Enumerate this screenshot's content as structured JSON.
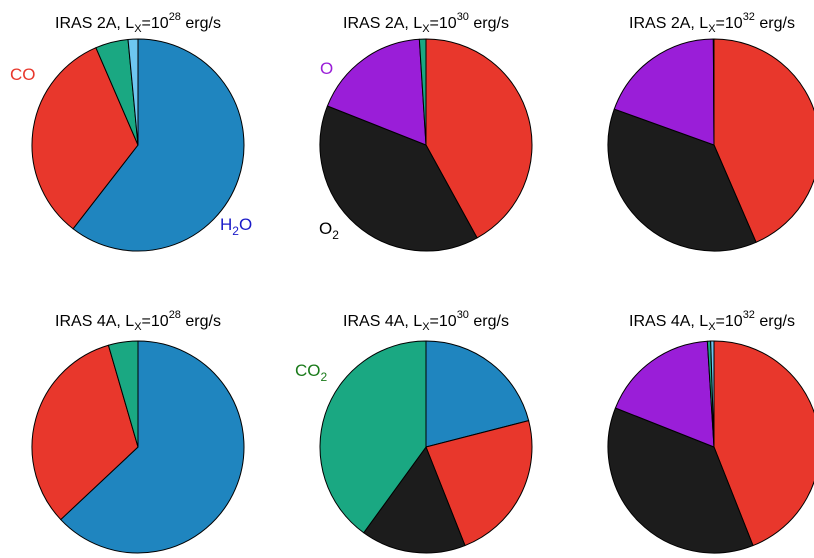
{
  "colors": {
    "H2O": "#1f85bf",
    "CO": "#e8372c",
    "CO2": "#1aa882",
    "O2": "#1c1c1c",
    "O": "#9a1ed8",
    "other": "#6ec6f0"
  },
  "chart_data": [
    {
      "type": "pie",
      "title": {
        "pre": "IRAS 2A, L",
        "sub": "X",
        "mid": "=10",
        "sup": "28",
        "post": " erg/s"
      },
      "slices": [
        {
          "species": "H2O",
          "value": 60.5
        },
        {
          "species": "CO",
          "value": 33
        },
        {
          "species": "CO2",
          "value": 5
        },
        {
          "species": "other",
          "value": 1.5
        }
      ],
      "labels": [
        {
          "species": "CO",
          "main": "CO",
          "sub": "",
          "color": "#e8372c"
        },
        {
          "species": "H2O",
          "main": "H",
          "sub": "2",
          "tail": "O",
          "color": "#1a1ac8"
        }
      ]
    },
    {
      "type": "pie",
      "title": {
        "pre": "IRAS 2A, L",
        "sub": "X",
        "mid": "=10",
        "sup": "30",
        "post": " erg/s"
      },
      "slices": [
        {
          "species": "CO",
          "value": 42
        },
        {
          "species": "O2",
          "value": 39
        },
        {
          "species": "O",
          "value": 18
        },
        {
          "species": "CO2",
          "value": 1
        }
      ],
      "labels": [
        {
          "species": "O",
          "main": "O",
          "sub": "",
          "color": "#9a1ed8"
        },
        {
          "species": "O2",
          "main": "O",
          "sub": "2",
          "color": "#000000"
        }
      ]
    },
    {
      "type": "pie",
      "title": {
        "pre": "IRAS 2A, L",
        "sub": "X",
        "mid": "=10",
        "sup": "32",
        "post": " erg/s"
      },
      "slices": [
        {
          "species": "CO",
          "value": 43.5
        },
        {
          "species": "O2",
          "value": 37
        },
        {
          "species": "O",
          "value": 19.4
        },
        {
          "species": "CO2",
          "value": 0.1
        }
      ],
      "labels": []
    },
    {
      "type": "pie",
      "title": {
        "pre": "IRAS 4A, L",
        "sub": "X",
        "mid": "=10",
        "sup": "28",
        "post": " erg/s"
      },
      "slices": [
        {
          "species": "H2O",
          "value": 63
        },
        {
          "species": "CO",
          "value": 32.5
        },
        {
          "species": "CO2",
          "value": 4.5
        }
      ],
      "labels": []
    },
    {
      "type": "pie",
      "title": {
        "pre": "IRAS 4A, L",
        "sub": "X",
        "mid": "=10",
        "sup": "30",
        "post": " erg/s"
      },
      "slices": [
        {
          "species": "H2O",
          "value": 21
        },
        {
          "species": "CO",
          "value": 23
        },
        {
          "species": "O2",
          "value": 16
        },
        {
          "species": "CO2",
          "value": 40
        }
      ],
      "labels": [
        {
          "species": "CO2",
          "main": "CO",
          "sub": "2",
          "color": "#1a7a1a"
        }
      ]
    },
    {
      "type": "pie",
      "title": {
        "pre": "IRAS 4A, L",
        "sub": "X",
        "mid": "=10",
        "sup": "32",
        "post": " erg/s"
      },
      "slices": [
        {
          "species": "CO",
          "value": 44
        },
        {
          "species": "O2",
          "value": 37
        },
        {
          "species": "O",
          "value": 18
        },
        {
          "species": "CO2",
          "value": 0.5
        },
        {
          "species": "other",
          "value": 0.5
        }
      ],
      "labels": []
    }
  ]
}
